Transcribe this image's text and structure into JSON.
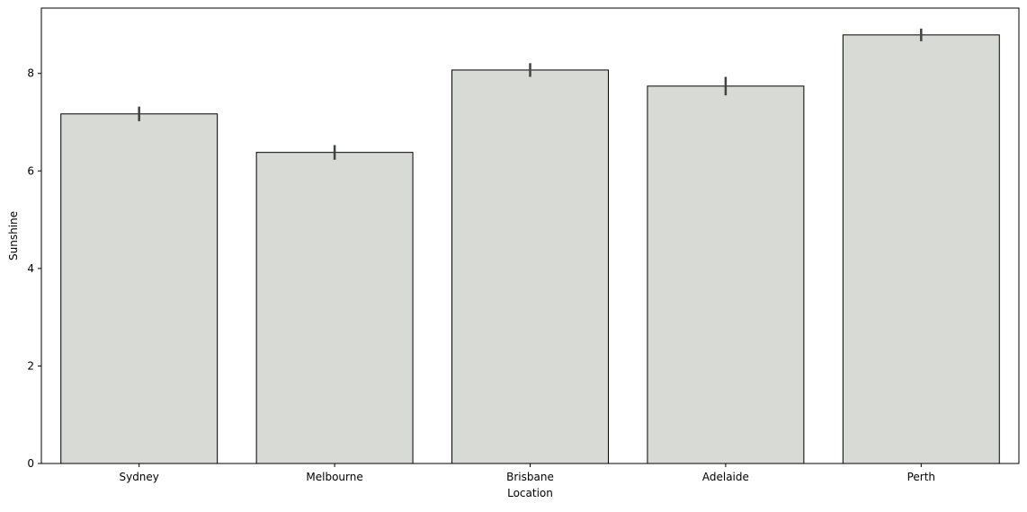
{
  "chart_data": {
    "type": "bar",
    "categories": [
      "Sydney",
      "Melbourne",
      "Brisbane",
      "Adelaide",
      "Perth"
    ],
    "values": [
      7.17,
      6.38,
      8.07,
      7.74,
      8.79
    ],
    "error_low": [
      7.02,
      6.23,
      7.93,
      7.55,
      8.66
    ],
    "error_high": [
      7.32,
      6.53,
      8.21,
      7.93,
      8.92
    ],
    "title": "",
    "xlabel": "Location",
    "ylabel": "Sunshine",
    "ylim": [
      0,
      9.34
    ],
    "yticks": [
      0,
      2,
      4,
      6,
      8
    ],
    "ytick_labels": [
      "0",
      "2",
      "4",
      "6",
      "8"
    ],
    "grid": false,
    "colors": {
      "bar_fill": "#d8dad5",
      "bar_edge": "#000000",
      "error_bar": "#424242",
      "axis": "#000000"
    }
  }
}
